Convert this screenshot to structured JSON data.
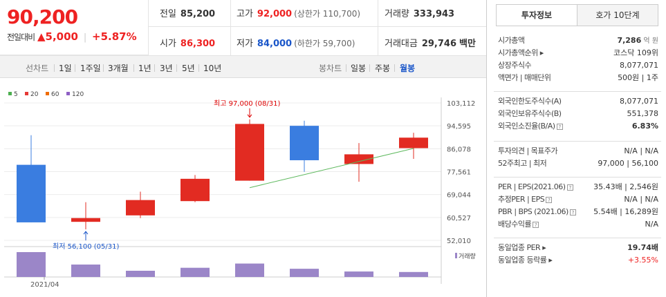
{
  "price": {
    "current": "90,200",
    "change_label": "전일대비",
    "change_amount": "▲5,000",
    "change_pct": "+5.87%"
  },
  "summary": {
    "prev_close": {
      "label": "전일",
      "value": "85,200"
    },
    "high": {
      "label": "고가",
      "value": "92,000",
      "sub": "(상한가 110,700)"
    },
    "volume": {
      "label": "거래량",
      "value": "333,943"
    },
    "open": {
      "label": "시가",
      "value": "86,300"
    },
    "low": {
      "label": "저가",
      "value": "84,000",
      "sub": "(하한가 59,700)"
    },
    "amount": {
      "label": "거래대금",
      "value": "29,746",
      "unit": "백만"
    }
  },
  "toolbar": {
    "line_label": "선차트",
    "periods": [
      "1일",
      "1주일",
      "3개월",
      "1년",
      "3년",
      "5년",
      "10년"
    ],
    "candle_label": "봉차트",
    "candle_types": [
      "일봉",
      "주봉",
      "월봉"
    ],
    "candle_selected": "월봉"
  },
  "legend": [
    {
      "label": "5",
      "color": "#4caf50"
    },
    {
      "label": "20",
      "color": "#e53935"
    },
    {
      "label": "60",
      "color": "#ef6c00"
    },
    {
      "label": "120",
      "color": "#8e5fc4"
    }
  ],
  "annotations": {
    "max": "최고 97,000 (08/31)",
    "min": "최저 56,100 (05/31)",
    "volume_label": "거래량"
  },
  "chart_data": {
    "type": "candlestick",
    "x_tick_labels": [
      "2021/04"
    ],
    "y_ticks": [
      103112,
      94595,
      86078,
      77561,
      69044,
      60527,
      52010
    ],
    "ylim": [
      52010,
      103112
    ],
    "candles": [
      {
        "open": 80100,
        "close": 58700,
        "high": 91100,
        "low": 58700,
        "volume": 100
      },
      {
        "open": 58900,
        "close": 60300,
        "high": 66200,
        "low": 56100,
        "volume": 50
      },
      {
        "open": 61300,
        "close": 67000,
        "high": 70100,
        "low": 60300,
        "volume": 25
      },
      {
        "open": 66600,
        "close": 74900,
        "high": 76300,
        "low": 66200,
        "volume": 37
      },
      {
        "open": 74200,
        "close": 95300,
        "high": 97000,
        "low": 74200,
        "volume": 54
      },
      {
        "open": 94600,
        "close": 81800,
        "high": 96500,
        "low": 77500,
        "volume": 33
      },
      {
        "open": 80400,
        "close": 84000,
        "high": 88200,
        "low": 73800,
        "volume": 22
      },
      {
        "open": 86300,
        "close": 90200,
        "high": 92000,
        "low": 82300,
        "volume": 20
      }
    ],
    "ma20": [
      {
        "i": 4,
        "v": 71600
      },
      {
        "i": 7,
        "v": 86200
      }
    ],
    "up_color": "#e22b22",
    "down_color": "#3a7de0",
    "volume_color": "#9b86c8",
    "ma20_color": "#5cb85c"
  },
  "panel": {
    "tabs": [
      "투자정보",
      "호가 10단계"
    ],
    "rows1": [
      {
        "label": "시가총액",
        "value": "7,286",
        "unit": "억 원",
        "bold": true
      },
      {
        "label": "시가총액순위 ▸",
        "value": "코스닥 109위"
      },
      {
        "label": "상장주식수",
        "value": "8,077,071"
      },
      {
        "label": "액면가 | 매매단위",
        "value": "500원 | 1주"
      }
    ],
    "rows2": [
      {
        "label": "외국인한도주식수(A)",
        "value": "8,077,071"
      },
      {
        "label": "외국인보유주식수(B)",
        "value": "551,378"
      },
      {
        "label": "외국인소진율(B/A)",
        "value": "6.83%",
        "bold": true,
        "q": true
      }
    ],
    "rows3": [
      {
        "label": "투자의견 | 목표주가",
        "value": "N/A | N/A"
      },
      {
        "label": "52주최고 | 최저",
        "value": "97,000 | 56,100"
      }
    ],
    "rows4": [
      {
        "label": "PER | EPS(2021.06)",
        "value": "35.43배 | 2,546원",
        "q": true
      },
      {
        "label": "추정PER | EPS",
        "value": "N/A | N/A",
        "q": true
      },
      {
        "label": "PBR | BPS (2021.06)",
        "value": "5.54배 | 16,289원",
        "q": true
      },
      {
        "label": "배당수익률",
        "value": "N/A",
        "q": true
      }
    ],
    "rows5": [
      {
        "label": "동일업종 PER ▸",
        "value": "19.74배",
        "bold": true
      },
      {
        "label": "동일업종 등락률 ▸",
        "value": "+3.55%",
        "red": true
      }
    ]
  }
}
